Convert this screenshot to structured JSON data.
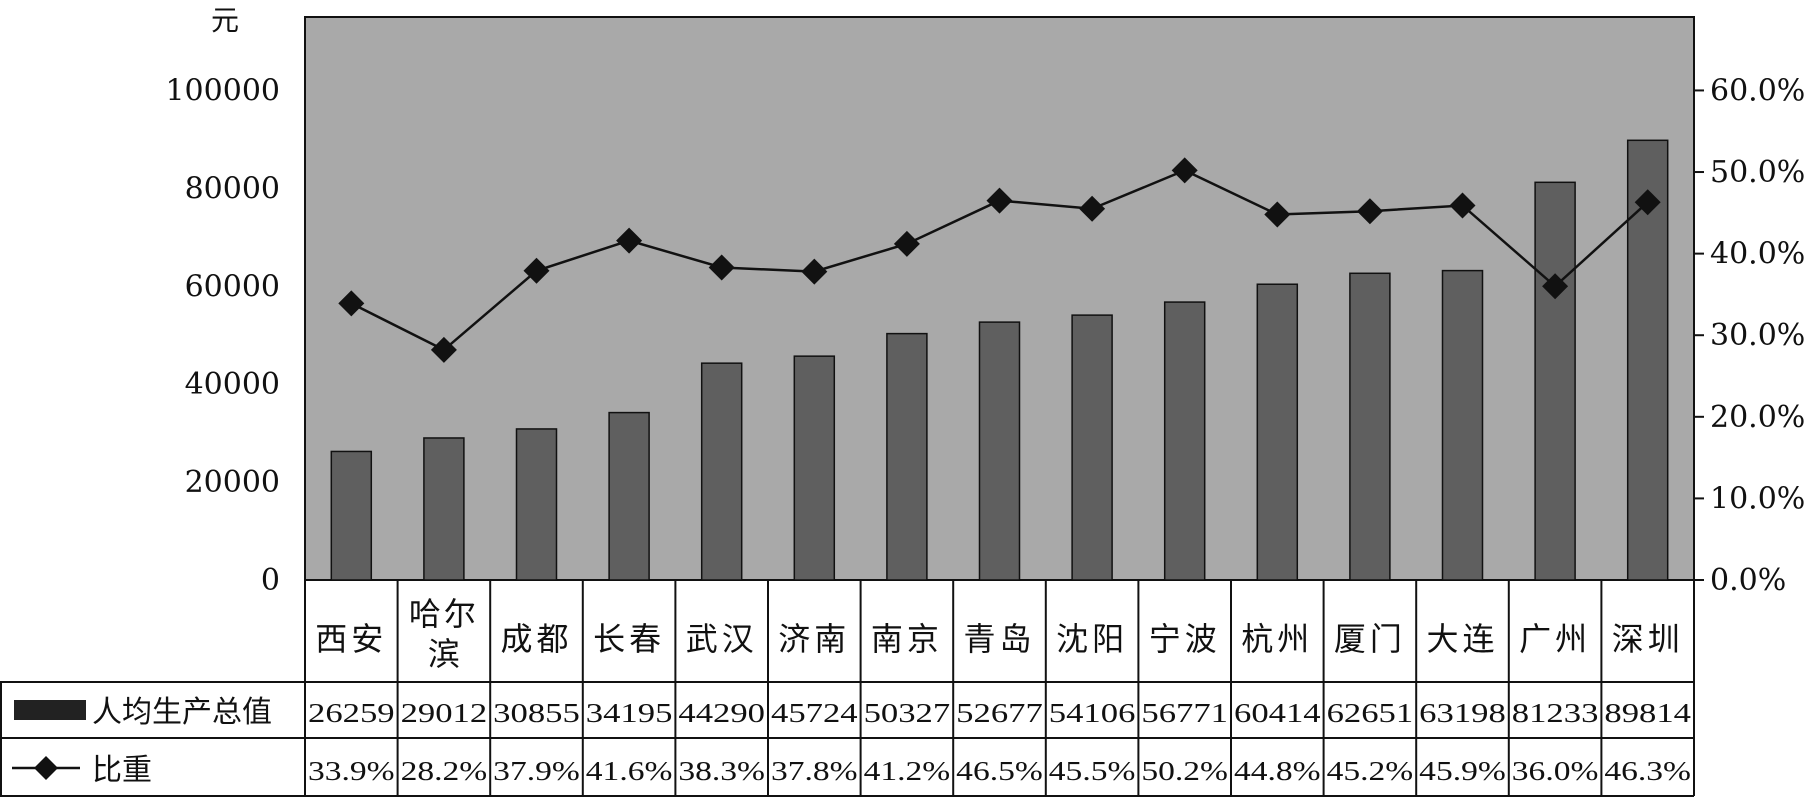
{
  "chart_data": {
    "type": "bar",
    "categories": [
      "西安",
      "哈尔滨",
      "成都",
      "长春",
      "武汉",
      "济南",
      "南京",
      "青岛",
      "沈阳",
      "宁波",
      "杭州",
      "厦门",
      "大连",
      "广州",
      "深圳"
    ],
    "y_unit": "元",
    "ylim": [
      0,
      115000
    ],
    "yticks": [
      "0",
      "20000",
      "40000",
      "60000",
      "80000",
      "100000"
    ],
    "y2lim": [
      0,
      0.69
    ],
    "y2ticks": [
      "0.0%",
      "10.0%",
      "20.0%",
      "30.0%",
      "40.0%",
      "50.0%",
      "60.0%"
    ],
    "grid": false,
    "series": [
      {
        "name": "人均生产总值",
        "type": "bar",
        "color": "#5f5f5f",
        "values": [
          26259,
          29012,
          30855,
          34195,
          44290,
          45724,
          50327,
          52677,
          54106,
          56771,
          60414,
          62651,
          63198,
          81233,
          89814
        ],
        "labels": [
          "26259",
          "29012",
          "30855",
          "34195",
          "44290",
          "45724",
          "50327",
          "52677",
          "54106",
          "56771",
          "60414",
          "62651",
          "63198",
          "81233",
          "89814"
        ]
      },
      {
        "name": "比重",
        "type": "line",
        "axis": "right",
        "color": "#111111",
        "values": [
          0.339,
          0.282,
          0.379,
          0.416,
          0.383,
          0.378,
          0.412,
          0.465,
          0.455,
          0.502,
          0.448,
          0.452,
          0.459,
          0.36,
          0.463
        ],
        "labels": [
          "33.9%",
          "28.2%",
          "37.9%",
          "41.6%",
          "38.3%",
          "37.8%",
          "41.2%",
          "46.5%",
          "45.5%",
          "50.2%",
          "44.8%",
          "45.2%",
          "45.9%",
          "36.0%",
          "46.3%"
        ]
      }
    ],
    "colors": {
      "plot_bg": "#a9a9a9",
      "bar": "#5f5f5f",
      "legend_bar": "#222222"
    }
  }
}
